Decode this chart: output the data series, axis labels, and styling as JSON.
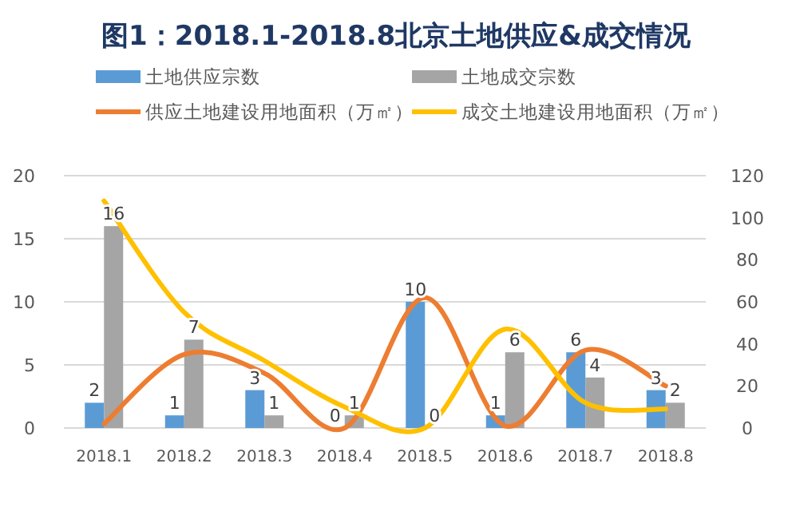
{
  "chart_data": {
    "type": "bar",
    "title": "图1：2018.1-2018.8北京土地供应&成交情况",
    "categories": [
      "2018.1",
      "2018.2",
      "2018.3",
      "2018.4",
      "2018.5",
      "2018.6",
      "2018.7",
      "2018.8"
    ],
    "series": [
      {
        "name": "土地供应宗数",
        "color": "#5b9bd5",
        "values": [
          2,
          1,
          3,
          0,
          10,
          1,
          6,
          3
        ],
        "value_labels": [
          "2",
          "1",
          "3",
          "0",
          "10",
          "1",
          "6",
          "3"
        ]
      },
      {
        "name": "土地成交宗数",
        "color": "#a5a5a5",
        "values": [
          16,
          7,
          1,
          1,
          0,
          6,
          4,
          2
        ],
        "value_labels": [
          "16",
          "7",
          "1",
          "1",
          "0",
          "6",
          "4",
          "2"
        ]
      },
      {
        "name": "供应土地建设用地面积（万㎡）",
        "type": "line",
        "axis": "y2",
        "color": "#ed7d31",
        "values": [
          2,
          35,
          26,
          0,
          62,
          1,
          37,
          20
        ]
      },
      {
        "name": "成交土地建设用地面积（万㎡）",
        "type": "line",
        "axis": "y2",
        "color": "#ffc000",
        "values": [
          108,
          55,
          32,
          10,
          0,
          47,
          12,
          9
        ]
      }
    ],
    "ylim": [
      0,
      20
    ],
    "yticks": [
      0,
      5,
      10,
      15,
      20
    ],
    "y2lim": [
      0,
      120
    ],
    "y2ticks": [
      0,
      20,
      40,
      60,
      80,
      100,
      120
    ],
    "grid": "y",
    "legend": "top"
  }
}
